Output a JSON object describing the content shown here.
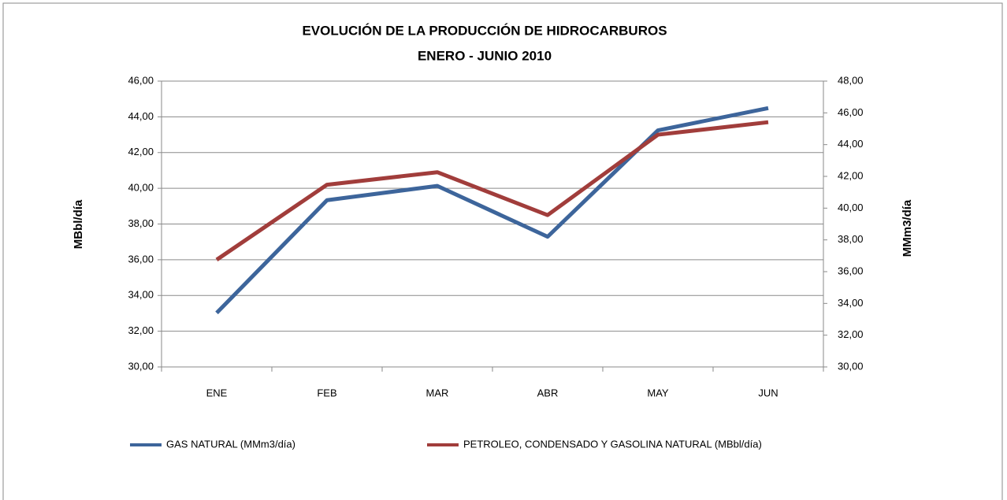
{
  "chart_data": {
    "type": "line",
    "title": "EVOLUCIÓN DE LA PRODUCCIÓN DE HIDROCARBUROS",
    "subtitle": "ENERO - JUNIO 2010",
    "ylabel": "MBbl/día",
    "y2label": "MMm3/día",
    "categories": [
      "ENE",
      "FEB",
      "MAR",
      "ABR",
      "MAY",
      "JUN"
    ],
    "series": [
      {
        "name": "GAS NATURAL (MMm3/día)",
        "color": "#3d659b",
        "axis": "y2",
        "values": [
          33.4,
          40.5,
          41.4,
          38.2,
          44.9,
          46.3
        ]
      },
      {
        "name": "PETROLEO, CONDENSADO Y GASOLINA NATURAL (MBbl/día)",
        "color": "#a13d3b",
        "values": [
          36.0,
          40.2,
          40.9,
          38.5,
          43.0,
          43.7
        ]
      }
    ],
    "ylim": [
      30,
      46
    ],
    "yticks": [
      {
        "value": 30,
        "label": "30,00"
      },
      {
        "value": 32,
        "label": "32,00"
      },
      {
        "value": 34,
        "label": "34,00"
      },
      {
        "value": 36,
        "label": "36,00"
      },
      {
        "value": 38,
        "label": "38,00"
      },
      {
        "value": 40,
        "label": "40,00"
      },
      {
        "value": 42,
        "label": "42,00"
      },
      {
        "value": 44,
        "label": "44,00"
      },
      {
        "value": 46,
        "label": "46,00"
      }
    ],
    "y2lim": [
      30,
      48
    ],
    "y2ticks": [
      {
        "value": 30,
        "label": "30,00"
      },
      {
        "value": 32,
        "label": "32,00"
      },
      {
        "value": 34,
        "label": "34,00"
      },
      {
        "value": 36,
        "label": "36,00"
      },
      {
        "value": 38,
        "label": "38,00"
      },
      {
        "value": 40,
        "label": "40,00"
      },
      {
        "value": 42,
        "label": "42,00"
      },
      {
        "value": 44,
        "label": "44,00"
      },
      {
        "value": 46,
        "label": "46,00"
      },
      {
        "value": 48,
        "label": "48,00"
      }
    ],
    "grid": true,
    "legend": "bottom"
  }
}
